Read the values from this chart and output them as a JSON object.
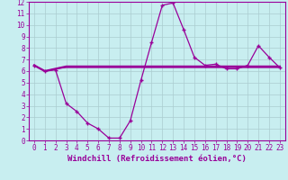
{
  "title": "",
  "xlabel": "Windchill (Refroidissement éolien,°C)",
  "ylabel": "",
  "bg_color": "#c8eef0",
  "grid_color": "#aaccd0",
  "line_color": "#990099",
  "xlim": [
    -0.5,
    23.5
  ],
  "ylim": [
    0,
    12
  ],
  "xticks": [
    0,
    1,
    2,
    3,
    4,
    5,
    6,
    7,
    8,
    9,
    10,
    11,
    12,
    13,
    14,
    15,
    16,
    17,
    18,
    19,
    20,
    21,
    22,
    23
  ],
  "yticks": [
    0,
    1,
    2,
    3,
    4,
    5,
    6,
    7,
    8,
    9,
    10,
    11,
    12
  ],
  "line1_x": [
    0,
    1,
    2,
    3,
    4,
    5,
    6,
    7,
    8,
    9,
    10,
    11,
    12,
    13,
    14,
    15,
    16,
    17,
    18,
    19,
    20,
    21,
    22,
    23
  ],
  "line1_y": [
    6.5,
    6.0,
    6.1,
    3.2,
    2.5,
    1.5,
    1.0,
    0.2,
    0.2,
    1.7,
    5.2,
    8.5,
    11.7,
    11.9,
    9.6,
    7.2,
    6.5,
    6.6,
    6.2,
    6.2,
    6.5,
    8.2,
    7.2,
    6.3
  ],
  "line2_x": [
    0,
    1,
    2,
    3,
    4,
    5,
    6,
    7,
    8,
    9,
    10,
    11,
    12,
    13,
    14,
    15,
    16,
    17,
    18,
    19,
    20,
    21,
    22,
    23
  ],
  "line2_y": [
    6.5,
    6.0,
    6.2,
    6.3,
    6.3,
    6.3,
    6.3,
    6.3,
    6.3,
    6.3,
    6.3,
    6.3,
    6.3,
    6.3,
    6.3,
    6.3,
    6.3,
    6.3,
    6.3,
    6.3,
    6.3,
    6.3,
    6.3,
    6.3
  ],
  "line3_x": [
    0,
    1,
    2,
    3,
    4,
    5,
    6,
    7,
    8,
    9,
    10,
    11,
    12,
    13,
    14,
    15,
    16,
    17,
    18,
    19,
    20,
    21,
    22,
    23
  ],
  "line3_y": [
    6.5,
    6.0,
    6.2,
    6.4,
    6.4,
    6.4,
    6.4,
    6.4,
    6.4,
    6.4,
    6.4,
    6.4,
    6.4,
    6.4,
    6.4,
    6.4,
    6.4,
    6.4,
    6.4,
    6.4,
    6.4,
    6.4,
    6.4,
    6.4
  ],
  "marker": "+",
  "markersize": 3,
  "markerwidth": 1.0,
  "linewidth": 0.9,
  "xlabel_fontsize": 6.5,
  "tick_fontsize": 5.5
}
